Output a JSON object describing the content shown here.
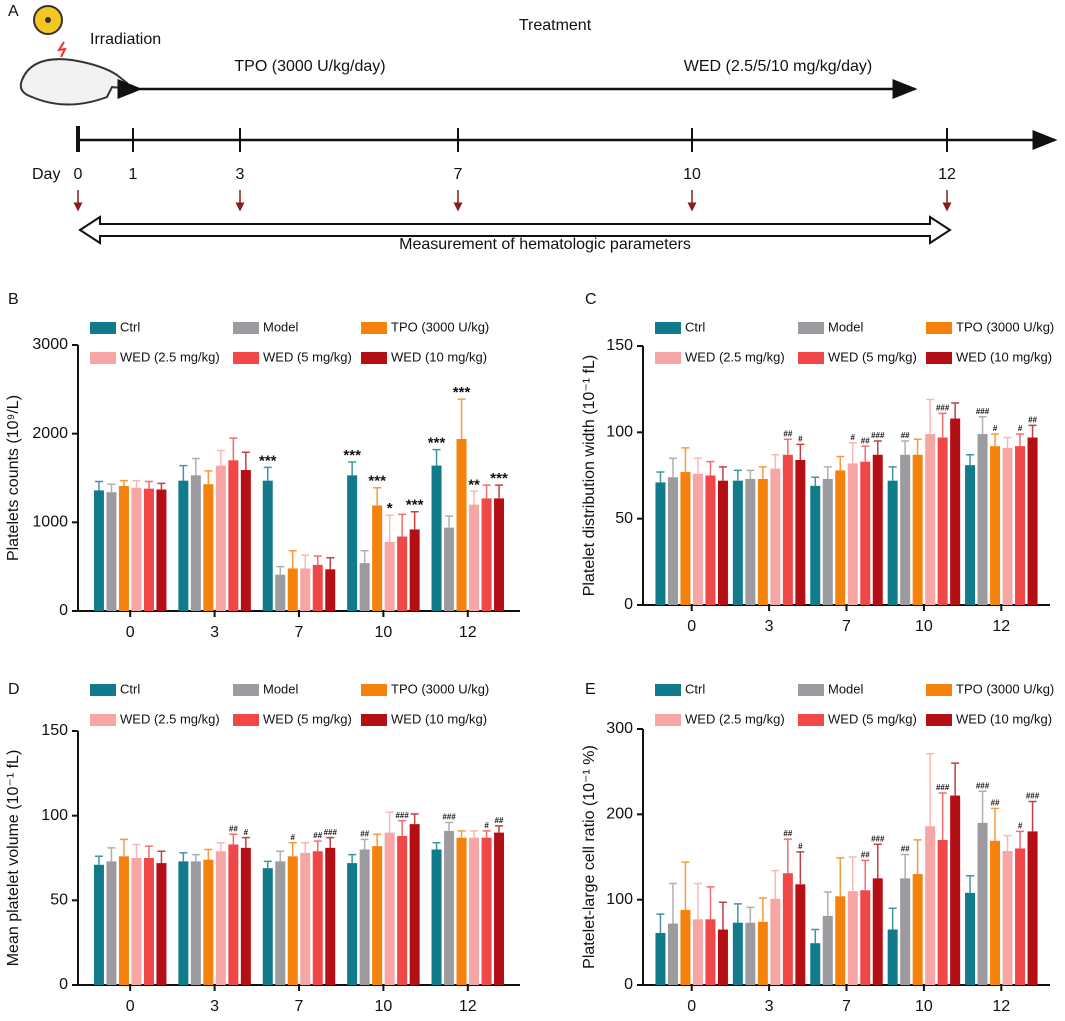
{
  "timeline": {
    "label": "A",
    "treatment": "Treatment",
    "irradiation": "Irradiation",
    "tpo": "TPO (3000 U/kg/day)",
    "wed": "WED (2.5/5/10 mg/kg/day)",
    "day": "Day",
    "days": [
      "0",
      "1",
      "3",
      "7",
      "10",
      "12"
    ],
    "measurement": "Measurement of hematologic parameters"
  },
  "chart_data": [
    {
      "type": "bar",
      "label": "B",
      "ylabel": "Platelets counts (10⁹/L)",
      "categories": [
        "0",
        "3",
        "7",
        "10",
        "12"
      ],
      "ylim": [
        0,
        3000
      ],
      "yticks": [
        0,
        1000,
        2000,
        3000
      ],
      "series": [
        {
          "name": "Ctrl",
          "color": "#127b8b",
          "values": [
            1360,
            1470,
            1470,
            1530,
            1640
          ],
          "errors": [
            100,
            170,
            150,
            150,
            180
          ]
        },
        {
          "name": "Model",
          "color": "#9b9ba0",
          "values": [
            1340,
            1530,
            410,
            540,
            940
          ],
          "errors": [
            90,
            190,
            90,
            140,
            130
          ]
        },
        {
          "name": "TPO (3000 U/kg)",
          "color": "#f5820d",
          "values": [
            1410,
            1430,
            480,
            1190,
            1940
          ],
          "errors": [
            60,
            150,
            200,
            200,
            450
          ]
        },
        {
          "name": "WED (2.5 mg/kg)",
          "color": "#f7a6a6",
          "values": [
            1390,
            1640,
            480,
            780,
            1200
          ],
          "errors": [
            80,
            170,
            150,
            300,
            150
          ]
        },
        {
          "name": "WED (5 mg/kg)",
          "color": "#f04848",
          "values": [
            1380,
            1700,
            520,
            840,
            1270
          ],
          "errors": [
            80,
            250,
            100,
            250,
            150
          ]
        },
        {
          "name": "WED (10 mg/kg)",
          "color": "#b30f15",
          "values": [
            1370,
            1590,
            470,
            920,
            1270
          ],
          "errors": [
            70,
            200,
            130,
            200,
            150
          ]
        }
      ],
      "annotations": [
        {
          "text": "***",
          "series": 0,
          "category": 2
        },
        {
          "text": "***",
          "series": 0,
          "category": 3
        },
        {
          "text": "***",
          "series": 2,
          "category": 3
        },
        {
          "text": "*",
          "series": 3,
          "category": 3
        },
        {
          "text": "***",
          "series": 5,
          "category": 3
        },
        {
          "text": "***",
          "series": 0,
          "category": 4
        },
        {
          "text": "***",
          "series": 2,
          "category": 4
        },
        {
          "text": "**",
          "series": 3,
          "category": 4
        },
        {
          "text": "***",
          "series": 5,
          "category": 4
        }
      ]
    },
    {
      "type": "bar",
      "label": "C",
      "ylabel": "Platelet distribution width (10⁻¹ fL)",
      "categories": [
        "0",
        "3",
        "7",
        "10",
        "12"
      ],
      "ylim": [
        0,
        150
      ],
      "yticks": [
        0,
        50,
        100,
        150
      ],
      "series": [
        {
          "name": "Ctrl",
          "color": "#127b8b",
          "values": [
            71,
            72,
            69,
            72,
            81
          ],
          "errors": [
            6,
            6,
            5,
            8,
            6
          ]
        },
        {
          "name": "Model",
          "color": "#9b9ba0",
          "values": [
            74,
            73,
            73,
            87,
            99
          ],
          "errors": [
            11,
            5,
            7,
            8,
            10
          ]
        },
        {
          "name": "TPO (3000 U/kg)",
          "color": "#f5820d",
          "values": [
            77,
            73,
            78,
            87,
            92
          ],
          "errors": [
            14,
            7,
            8,
            9,
            7
          ]
        },
        {
          "name": "WED (2.5 mg/kg)",
          "color": "#f7a6a6",
          "values": [
            76,
            79,
            82,
            99,
            91
          ],
          "errors": [
            9,
            8,
            12,
            20,
            6
          ]
        },
        {
          "name": "WED (5 mg/kg)",
          "color": "#f04848",
          "values": [
            75,
            87,
            83,
            97,
            92
          ],
          "errors": [
            8,
            9,
            9,
            14,
            7
          ]
        },
        {
          "name": "WED (10 mg/kg)",
          "color": "#b30f15",
          "values": [
            72,
            84,
            87,
            108,
            97
          ],
          "errors": [
            8,
            9,
            8,
            9,
            7
          ]
        }
      ],
      "annotations": [
        {
          "text": "##",
          "series": 4,
          "category": 1
        },
        {
          "text": "#",
          "series": 5,
          "category": 1
        },
        {
          "text": "#",
          "series": 3,
          "category": 2
        },
        {
          "text": "##",
          "series": 4,
          "category": 2
        },
        {
          "text": "###",
          "series": 5,
          "category": 2
        },
        {
          "text": "##",
          "series": 1,
          "category": 3
        },
        {
          "text": "###",
          "series": 4,
          "category": 3
        },
        {
          "text": "###",
          "series": 1,
          "category": 4
        },
        {
          "text": "#",
          "series": 2,
          "category": 4
        },
        {
          "text": "#",
          "series": 4,
          "category": 4
        },
        {
          "text": "##",
          "series": 5,
          "category": 4
        }
      ]
    },
    {
      "type": "bar",
      "label": "D",
      "ylabel": "Mean platelet volume (10⁻¹ fL)",
      "categories": [
        "0",
        "3",
        "7",
        "10",
        "12"
      ],
      "ylim": [
        0,
        150
      ],
      "yticks": [
        0,
        50,
        100,
        150
      ],
      "series": [
        {
          "name": "Ctrl",
          "color": "#127b8b",
          "values": [
            71,
            73,
            69,
            72,
            80
          ],
          "errors": [
            5,
            5,
            4,
            5,
            4
          ]
        },
        {
          "name": "Model",
          "color": "#9b9ba0",
          "values": [
            73,
            73,
            73,
            80,
            91
          ],
          "errors": [
            8,
            4,
            6,
            6,
            5
          ]
        },
        {
          "name": "TPO (3000 U/kg)",
          "color": "#f5820d",
          "values": [
            76,
            74,
            76,
            82,
            87
          ],
          "errors": [
            10,
            6,
            8,
            7,
            4
          ]
        },
        {
          "name": "WED (2.5 mg/kg)",
          "color": "#f7a6a6",
          "values": [
            75,
            79,
            78,
            90,
            87
          ],
          "errors": [
            8,
            5,
            6,
            12,
            4
          ]
        },
        {
          "name": "WED (5 mg/kg)",
          "color": "#f04848",
          "values": [
            75,
            83,
            79,
            88,
            87
          ],
          "errors": [
            7,
            6,
            6,
            9,
            4
          ]
        },
        {
          "name": "WED (10 mg/kg)",
          "color": "#b30f15",
          "values": [
            72,
            81,
            81,
            95,
            90
          ],
          "errors": [
            7,
            6,
            6,
            6,
            4
          ]
        }
      ],
      "annotations": [
        {
          "text": "##",
          "series": 4,
          "category": 1
        },
        {
          "text": "#",
          "series": 5,
          "category": 1
        },
        {
          "text": "#",
          "series": 2,
          "category": 2
        },
        {
          "text": "##",
          "series": 4,
          "category": 2
        },
        {
          "text": "###",
          "series": 5,
          "category": 2
        },
        {
          "text": "##",
          "series": 1,
          "category": 3
        },
        {
          "text": "###",
          "series": 4,
          "category": 3
        },
        {
          "text": "###",
          "series": 1,
          "category": 4
        },
        {
          "text": "#",
          "series": 4,
          "category": 4
        },
        {
          "text": "##",
          "series": 5,
          "category": 4
        }
      ]
    },
    {
      "type": "bar",
      "label": "E",
      "ylabel": "Platelet-large cell ratio (10⁻¹ %)",
      "categories": [
        "0",
        "3",
        "7",
        "10",
        "12"
      ],
      "ylim": [
        0,
        300
      ],
      "yticks": [
        0,
        100,
        200,
        300
      ],
      "series": [
        {
          "name": "Ctrl",
          "color": "#127b8b",
          "values": [
            61,
            73,
            49,
            65,
            108
          ],
          "errors": [
            22,
            22,
            16,
            25,
            20
          ]
        },
        {
          "name": "Model",
          "color": "#9b9ba0",
          "values": [
            72,
            73,
            81,
            125,
            190
          ],
          "errors": [
            47,
            18,
            28,
            28,
            37
          ]
        },
        {
          "name": "TPO (3000 U/kg)",
          "color": "#f5820d",
          "values": [
            88,
            74,
            104,
            130,
            169
          ],
          "errors": [
            56,
            28,
            45,
            40,
            38
          ]
        },
        {
          "name": "WED (2.5 mg/kg)",
          "color": "#f7a6a6",
          "values": [
            77,
            101,
            110,
            186,
            157
          ],
          "errors": [
            42,
            33,
            40,
            85,
            18
          ]
        },
        {
          "name": "WED (5 mg/kg)",
          "color": "#f04848",
          "values": [
            77,
            131,
            111,
            170,
            160
          ],
          "errors": [
            38,
            40,
            35,
            55,
            20
          ]
        },
        {
          "name": "WED (10 mg/kg)",
          "color": "#b30f15",
          "values": [
            65,
            118,
            125,
            222,
            180
          ],
          "errors": [
            32,
            38,
            40,
            38,
            35
          ]
        }
      ],
      "annotations": [
        {
          "text": "##",
          "series": 4,
          "category": 1
        },
        {
          "text": "#",
          "series": 5,
          "category": 1
        },
        {
          "text": "##",
          "series": 4,
          "category": 2
        },
        {
          "text": "###",
          "series": 5,
          "category": 2
        },
        {
          "text": "##",
          "series": 1,
          "category": 3
        },
        {
          "text": "###",
          "series": 4,
          "category": 3
        },
        {
          "text": "###",
          "series": 1,
          "category": 4
        },
        {
          "text": "##",
          "series": 2,
          "category": 4
        },
        {
          "text": "#",
          "series": 4,
          "category": 4
        },
        {
          "text": "###",
          "series": 5,
          "category": 4
        }
      ]
    }
  ]
}
